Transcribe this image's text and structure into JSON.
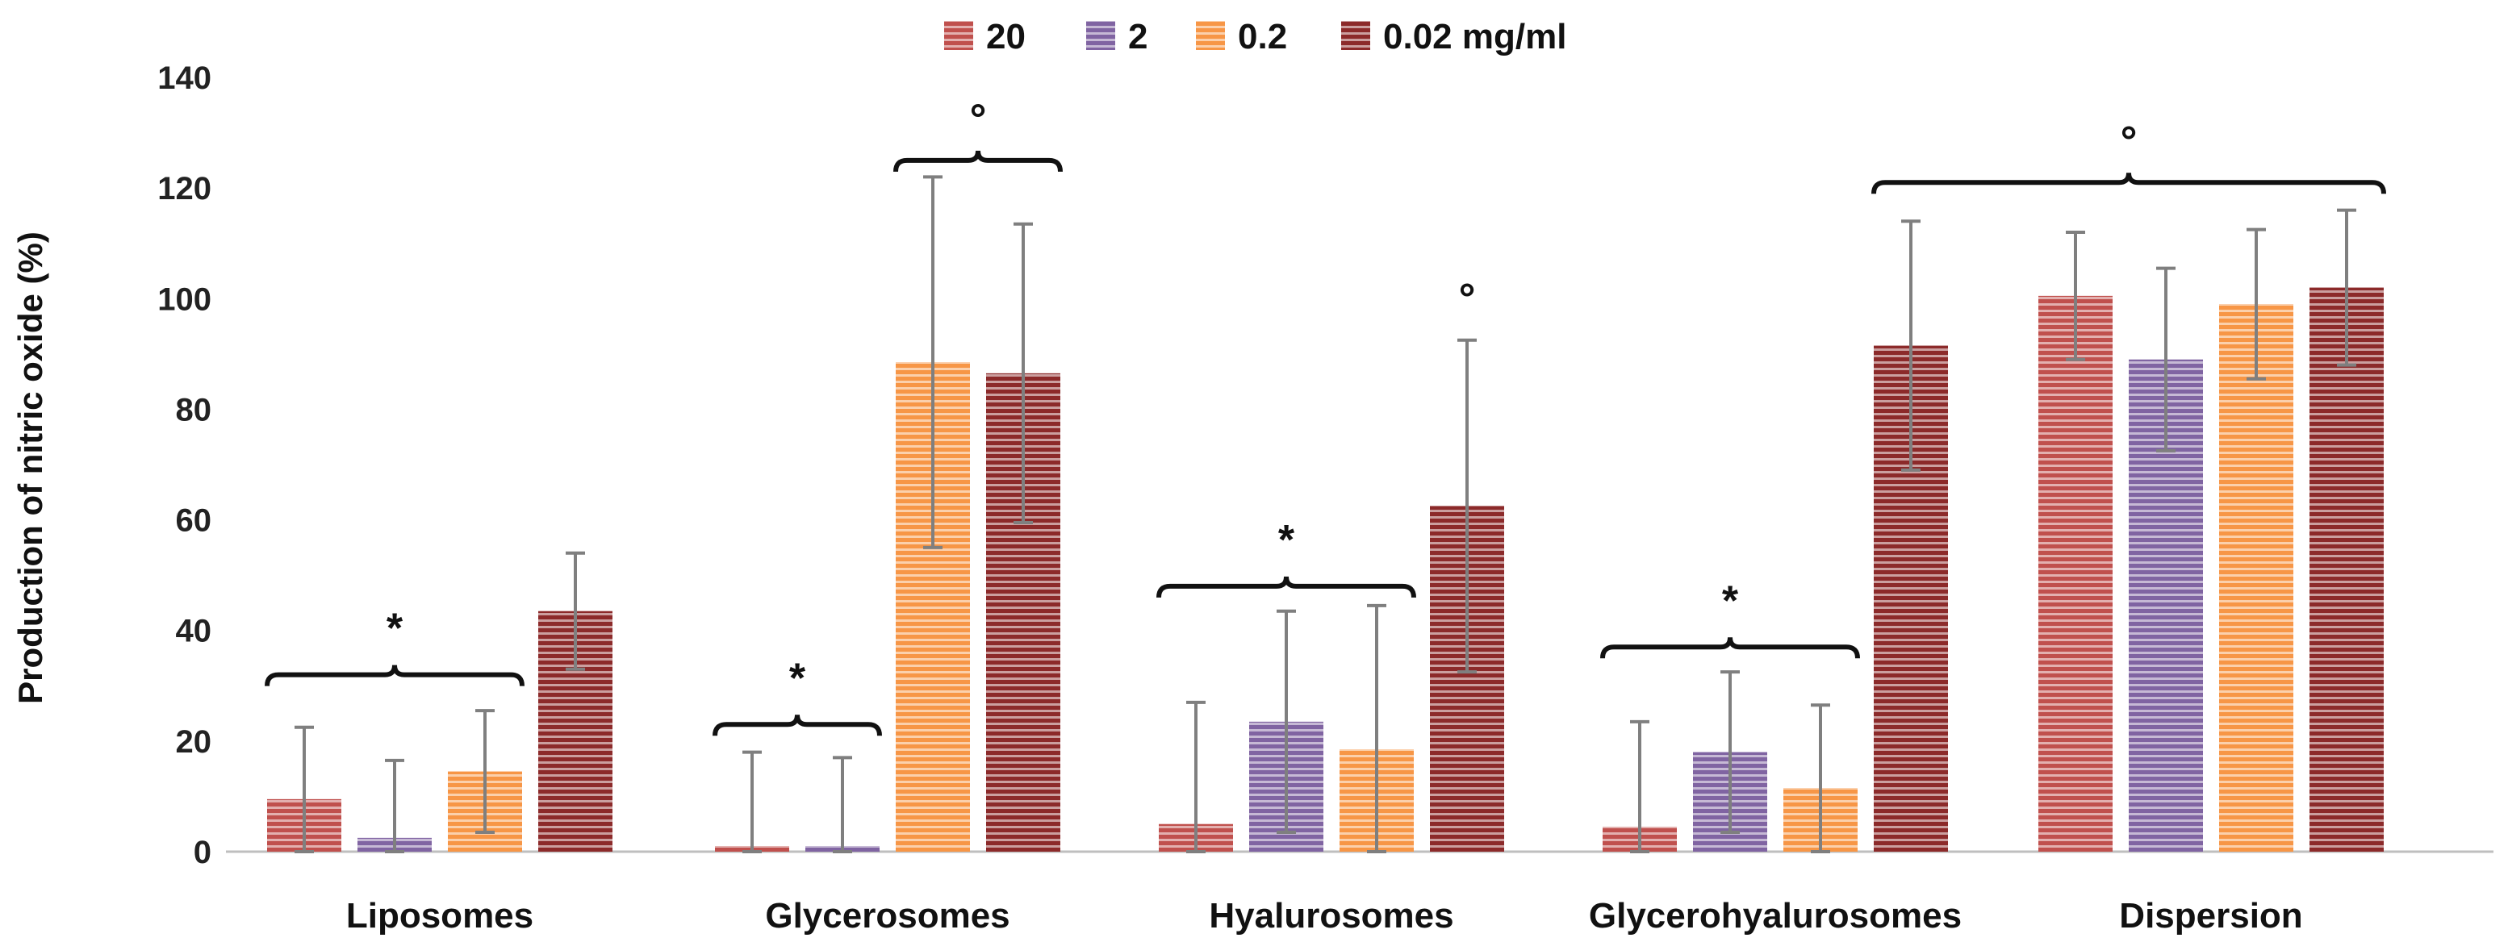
{
  "chart_data": {
    "type": "bar",
    "title": "",
    "xlabel": "",
    "ylabel": "Production of nitric oxide (%)",
    "ylim": [
      0,
      140
    ],
    "yticks": [
      0,
      20,
      40,
      60,
      80,
      100,
      120,
      140
    ],
    "grid": false,
    "legend_position": "top-center",
    "categories": [
      "Liposomes",
      "Glycerosomes",
      "Hyalurosomes",
      "Glycerohyalurosomes",
      "Dispersion"
    ],
    "series": [
      {
        "name": "20",
        "color": "#c0504d",
        "values": [
          9.5,
          1,
          5,
          4.5,
          100.5
        ],
        "errors": [
          13,
          17,
          22,
          19,
          11.5
        ]
      },
      {
        "name": "2",
        "color": "#8064a2",
        "values": [
          2.5,
          1,
          23.5,
          18,
          89
        ],
        "errors": [
          14,
          16,
          20,
          14.5,
          16.5
        ]
      },
      {
        "name": "0.2",
        "color": "#f79646",
        "values": [
          14.5,
          88.5,
          18.5,
          11.5,
          99
        ],
        "errors": [
          11,
          33.5,
          26,
          15,
          13.5
        ]
      },
      {
        "name": "0.02 mg/ml",
        "color": "#8c2a2a",
        "values": [
          43.5,
          86.5,
          62.5,
          91.5,
          102
        ],
        "errors": [
          10.5,
          27,
          30,
          22.5,
          14
        ]
      }
    ],
    "annotations": [
      {
        "symbol": "*",
        "category": "Liposomes",
        "bracket_series": [
          0,
          2
        ],
        "bracket_value": 32
      },
      {
        "symbol": "*",
        "category": "Glycerosomes",
        "bracket_series": [
          0,
          1
        ],
        "bracket_value": 23
      },
      {
        "symbol": "°",
        "category": "Glycerosomes",
        "bracket_series": [
          2,
          3
        ],
        "bracket_value": 125
      },
      {
        "symbol": "*",
        "category": "Hyalurosomes",
        "bracket_series": [
          0,
          2
        ],
        "bracket_value": 48
      },
      {
        "symbol": "°",
        "category": "Hyalurosomes",
        "over_series": 3
      },
      {
        "symbol": "*",
        "category": "Glycerohyalurosomes",
        "bracket_series": [
          0,
          2
        ],
        "bracket_value": 37
      },
      {
        "symbol": "°",
        "category": "Dispersion",
        "bracket_series": [
          3,
          7
        ],
        "bracket_value": 121,
        "spans_from_category": "Glycerohyalurosomes"
      }
    ]
  }
}
